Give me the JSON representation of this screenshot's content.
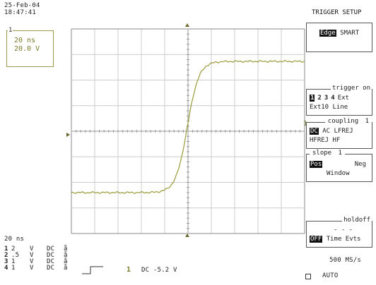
{
  "header": {
    "date": "25-Feb-04",
    "time": "18:47:41"
  },
  "inset": {
    "marker": "1",
    "timebase": "20 ns",
    "volts": "20.0 V"
  },
  "grid_bottom": {
    "timebase_label": "20 ns"
  },
  "channels": [
    {
      "num": "1",
      "volts": "2",
      "unit": "V",
      "coupling": "DC",
      "flag": "å"
    },
    {
      "num": "2",
      "volts": ".5",
      "unit": "V",
      "coupling": "DC",
      "flag": "å"
    },
    {
      "num": "3",
      "volts": "1",
      "unit": "V",
      "coupling": "DC",
      "flag": "å"
    },
    {
      "num": "4",
      "volts": "1",
      "unit": "V",
      "coupling": "DC",
      "flag": "å"
    }
  ],
  "trigger_readout": {
    "channel": "1",
    "text": "DC -5.2 V"
  },
  "menu": {
    "title": "TRIGGER SETUP",
    "type": {
      "selected": "Edge",
      "other": "SMART"
    },
    "trigger_on": {
      "label": "trigger on",
      "sources": [
        "1",
        "2",
        "3",
        "4",
        "Ext"
      ],
      "extra": "Ext10 Line",
      "selected_index": 0
    },
    "coupling": {
      "label": "coupling",
      "channel": "1",
      "selected": "DC",
      "options_line1": "AC LFREJ",
      "options_line2": "HFREJ HF"
    },
    "slope": {
      "label": "slope",
      "channel": "1",
      "selected": "Pos",
      "other": "Neg",
      "extra": "Window"
    },
    "holdoff": {
      "label": "holdoff",
      "dashes": "- - -",
      "selected": "OFF",
      "options": "Time Evts"
    }
  },
  "status": {
    "sample_rate": "500 MS/s",
    "mode": "AUTO"
  },
  "trigger_level_marker": "1",
  "colors": {
    "trace": "#9a9a3a",
    "grid": "#cccccc",
    "frame": "#888888"
  }
}
